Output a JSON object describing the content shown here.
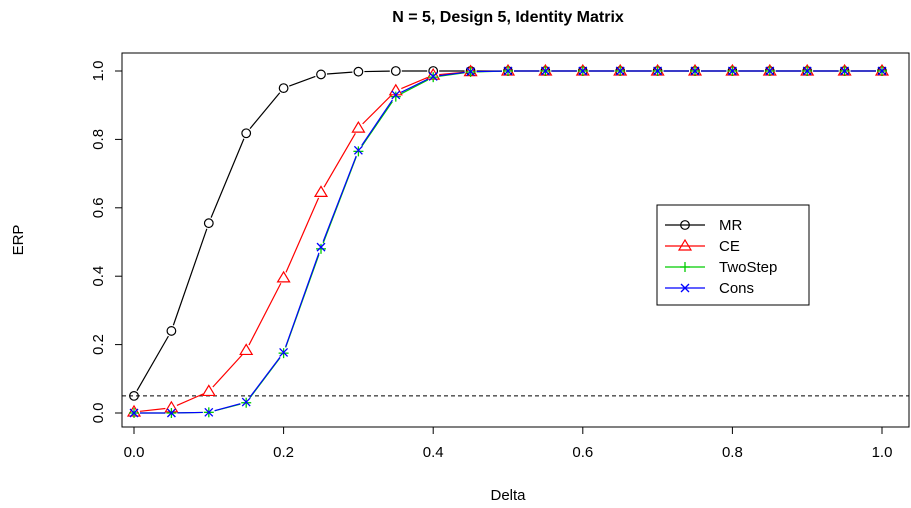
{
  "chart_data": {
    "type": "line",
    "title": "N = 5, Design 5, Identity Matrix",
    "xlabel": "Delta",
    "ylabel": "ERP",
    "xlim": [
      0,
      1
    ],
    "ylim": [
      0,
      1
    ],
    "xticks": [
      "0.0",
      "0.2",
      "0.4",
      "0.6",
      "0.8",
      "1.0"
    ],
    "yticks": [
      "0.0",
      "0.2",
      "0.4",
      "0.6",
      "0.8",
      "1.0"
    ],
    "x": [
      0,
      0.05,
      0.1,
      0.15,
      0.2,
      0.25,
      0.3,
      0.35,
      0.4,
      0.45,
      0.5,
      0.55,
      0.6,
      0.65,
      0.7,
      0.75,
      0.8,
      0.85,
      0.9,
      0.95,
      1.0
    ],
    "reference_line": {
      "y": 0.05,
      "style": "dashed"
    },
    "legend_position": "right",
    "series": [
      {
        "name": "MR",
        "color": "#000000",
        "marker": "circle",
        "values": [
          0.05,
          0.24,
          0.555,
          0.818,
          0.95,
          0.99,
          0.998,
          1.0,
          1.0,
          1.0,
          1.0,
          1.0,
          1.0,
          1.0,
          1.0,
          1.0,
          1.0,
          1.0,
          1.0,
          1.0,
          1.0
        ]
      },
      {
        "name": "CE",
        "color": "#ff0000",
        "marker": "triangle",
        "values": [
          0.003,
          0.015,
          0.063,
          0.183,
          0.395,
          0.645,
          0.833,
          0.942,
          0.988,
          0.998,
          1.0,
          1.0,
          1.0,
          1.0,
          1.0,
          1.0,
          1.0,
          1.0,
          1.0,
          1.0,
          1.0
        ]
      },
      {
        "name": "TwoStep",
        "color": "#00cc00",
        "marker": "plus",
        "values": [
          0.0,
          0.0,
          0.002,
          0.03,
          0.175,
          0.48,
          0.765,
          0.925,
          0.982,
          0.997,
          1.0,
          1.0,
          1.0,
          1.0,
          1.0,
          1.0,
          1.0,
          1.0,
          1.0,
          1.0,
          1.0
        ]
      },
      {
        "name": "Cons",
        "color": "#0000ff",
        "marker": "x",
        "values": [
          0.0,
          0.0,
          0.002,
          0.032,
          0.177,
          0.485,
          0.768,
          0.93,
          0.984,
          0.998,
          1.0,
          1.0,
          1.0,
          1.0,
          1.0,
          1.0,
          1.0,
          1.0,
          1.0,
          1.0,
          1.0
        ]
      }
    ]
  }
}
